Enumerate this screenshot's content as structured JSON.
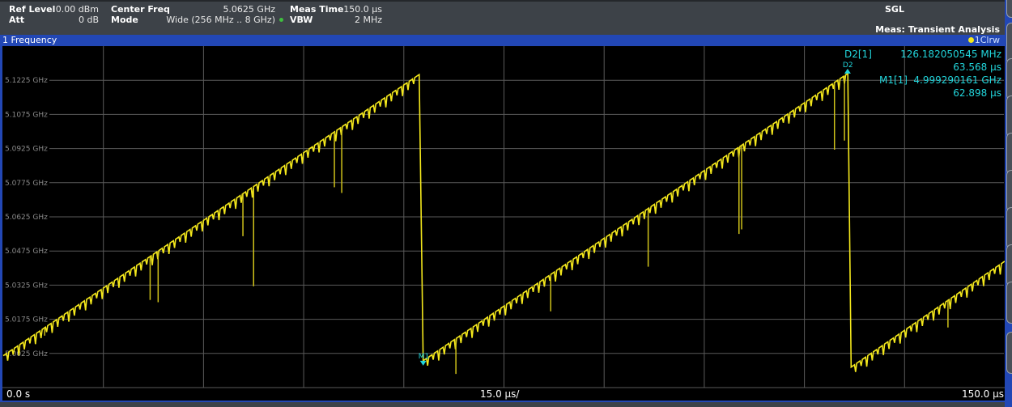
{
  "header": {
    "ref_level_label": "Ref Level",
    "ref_level_value": "0.00 dBm",
    "att_label": "Att",
    "att_value": "0 dB",
    "center_freq_label": "Center Freq",
    "center_freq_value": "5.0625 GHz",
    "mode_label": "Mode",
    "mode_value": "Wide (256 MHz .. 8 GHz)",
    "meas_time_label": "Meas Time",
    "meas_time_value": "150.0 µs",
    "vbw_label": "VBW",
    "vbw_value": "2 MHz",
    "sweep_mode": "SGL",
    "measurement": "Meas: Transient Analysis",
    "status_dot_color": "#3fbf3f"
  },
  "window": {
    "title": "1 Frequency",
    "trace_label": "1Clrw",
    "trace_dot_color": "#f4e81c"
  },
  "markers": {
    "d2_label": "D2[1]",
    "d2_value": "126.182050545 MHz",
    "d2_time": "63.568 µs",
    "m1_label": "M1[1]",
    "m1_value": "4.999290161 GHz",
    "m1_time": "62.898 µs",
    "d2_tag": "D2",
    "m1_tag": "M1",
    "color": "#22d6dc"
  },
  "footer": {
    "x_start": "0.0 s",
    "x_div": "15.0 µs/",
    "x_end": "150.0 µs"
  },
  "chart_data": {
    "type": "line",
    "xlabel": "",
    "ylabel": "",
    "xlim_us": [
      0,
      150
    ],
    "ylim_ghz": [
      4.9875,
      5.1375
    ],
    "grid": true,
    "y_ticks": [
      "5.1225 GHz",
      "5.1075 GHz",
      "5.0925 GHz",
      "5.0775 GHz",
      "5.0625 GHz",
      "5.0475 GHz",
      "5.0325 GHz",
      "5.0175 GHz",
      "5.0025 GHz"
    ],
    "y_tick_values": [
      5.1225,
      5.1075,
      5.0925,
      5.0775,
      5.0625,
      5.0475,
      5.0325,
      5.0175,
      5.0025
    ],
    "trace_color": "#f4e81c",
    "segments": [
      {
        "t_start_us": 0,
        "f_start_ghz": 5.0015,
        "t_end_us": 62.3,
        "f_end_ghz": 5.125
      },
      {
        "t_start_us": 62.9,
        "f_start_ghz": 4.9993,
        "t_end_us": 126.5,
        "f_end_ghz": 5.1255
      },
      {
        "t_start_us": 127.0,
        "f_start_ghz": 4.9965,
        "t_end_us": 150.0,
        "f_end_ghz": 5.043
      }
    ],
    "spikes": [
      {
        "t_us": 6.2,
        "f_min_ghz": 5.0103
      },
      {
        "t_us": 22.0,
        "f_min_ghz": 5.026
      },
      {
        "t_us": 23.2,
        "f_min_ghz": 5.025
      },
      {
        "t_us": 35.9,
        "f_min_ghz": 5.054
      },
      {
        "t_us": 37.5,
        "f_min_ghz": 5.032
      },
      {
        "t_us": 49.6,
        "f_min_ghz": 5.0755
      },
      {
        "t_us": 50.7,
        "f_min_ghz": 5.073
      },
      {
        "t_us": 67.8,
        "f_min_ghz": 4.9935
      },
      {
        "t_us": 82.0,
        "f_min_ghz": 5.021
      },
      {
        "t_us": 96.6,
        "f_min_ghz": 5.0406
      },
      {
        "t_us": 110.2,
        "f_min_ghz": 5.055
      },
      {
        "t_us": 110.6,
        "f_min_ghz": 5.057
      },
      {
        "t_us": 124.5,
        "f_min_ghz": 5.092
      },
      {
        "t_us": 126.0,
        "f_min_ghz": 5.096
      },
      {
        "t_us": 141.5,
        "f_min_ghz": 5.0139
      }
    ],
    "marker_m1": {
      "t_us": 62.898,
      "f_ghz": 4.999290161
    },
    "marker_d2": {
      "t_us": 126.466,
      "f_ghz": 5.125472211
    }
  }
}
